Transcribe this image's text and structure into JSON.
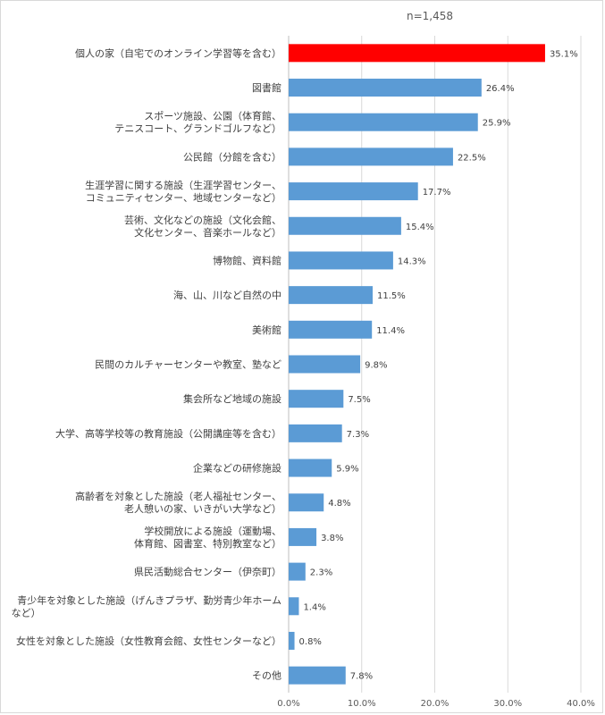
{
  "chart_data": {
    "type": "bar",
    "orientation": "horizontal",
    "sample_note": "n=1,458",
    "categories": [
      [
        "個人の家（自宅でのオンライン学習等を含む）"
      ],
      [
        "図書館"
      ],
      [
        "スポーツ施設、公園（体育館、",
        "テニスコート、グランドゴルフなど）"
      ],
      [
        "公民館（分館を含む）"
      ],
      [
        "生涯学習に関する施設（生涯学習センター、",
        "コミュニティセンター、地域センターなど）"
      ],
      [
        "芸術、文化などの施設（文化会館、",
        "文化センター、音楽ホールなど）"
      ],
      [
        "博物館、資料館"
      ],
      [
        "海、山、川など自然の中"
      ],
      [
        "美術館"
      ],
      [
        "民間のカルチャーセンターや教室、塾など"
      ],
      [
        "集会所など地域の施設"
      ],
      [
        "大学、高等学校等の教育施設（公開講座等を含む）"
      ],
      [
        "企業などの研修施設"
      ],
      [
        "高齢者を対象とした施設（老人福祉センター、",
        "老人憩いの家、いきがい大学など）"
      ],
      [
        "学校開放による施設（運動場、",
        "体育館、図書室、特別教室など）"
      ],
      [
        "県民活動総合センター（伊奈町）"
      ],
      [
        "青少年を対象とした施設（げんきプラザ、勤労青少年ホーム",
        "など）"
      ],
      [
        "女性を対象とした施設（女性教育会館、女性センターなど）"
      ],
      [
        "その他"
      ]
    ],
    "values": [
      35.1,
      26.4,
      25.9,
      22.5,
      17.7,
      15.4,
      14.3,
      11.5,
      11.4,
      9.8,
      7.5,
      7.3,
      5.9,
      4.8,
      3.8,
      2.3,
      1.4,
      0.8,
      7.8
    ],
    "value_labels": [
      "35.1%",
      "26.4%",
      "25.9%",
      "22.5%",
      "17.7%",
      "15.4%",
      "14.3%",
      "11.5%",
      "11.4%",
      "9.8%",
      "7.5%",
      "7.3%",
      "5.9%",
      "4.8%",
      "3.8%",
      "2.3%",
      "1.4%",
      "0.8%",
      "7.8%"
    ],
    "x_ticks": [
      "0.0%",
      "10.0%",
      "20.0%",
      "30.0%",
      "40.0%"
    ],
    "xlim": [
      0,
      40
    ],
    "highlight_index": 0,
    "colors": {
      "bar": "#5b9bd5",
      "highlight": "#ff0000",
      "grid": "#d9d9d9"
    },
    "grid": true
  }
}
